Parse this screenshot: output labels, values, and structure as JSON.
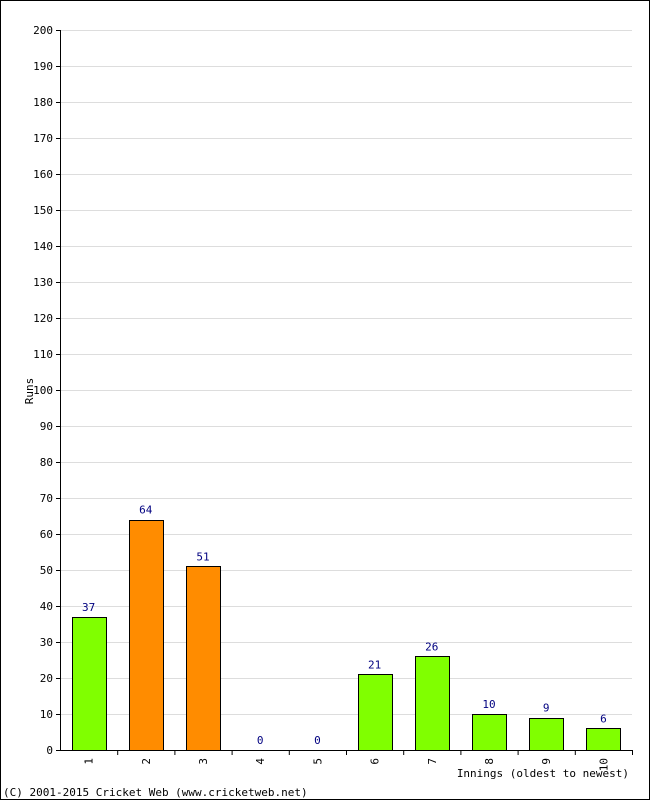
{
  "chart_data": {
    "type": "bar",
    "title": "",
    "ylabel": "Runs",
    "xlabel": "Innings (oldest to newest)",
    "ylim": [
      0,
      200
    ],
    "yticks": [
      0,
      10,
      20,
      30,
      40,
      50,
      60,
      70,
      80,
      90,
      100,
      110,
      120,
      130,
      140,
      150,
      160,
      170,
      180,
      190,
      200
    ],
    "categories": [
      "1",
      "2",
      "3",
      "4",
      "5",
      "6",
      "7",
      "8",
      "9",
      "10"
    ],
    "values": [
      37,
      64,
      51,
      0,
      0,
      21,
      26,
      10,
      9,
      6
    ],
    "bar_colors": [
      "#80ff00",
      "#ff8c00",
      "#ff8c00",
      "#80ff00",
      "#80ff00",
      "#80ff00",
      "#80ff00",
      "#80ff00",
      "#80ff00",
      "#80ff00"
    ],
    "grid": true,
    "label_color": "#000080",
    "grid_color": "#dddddd"
  },
  "footer": {
    "copyright": "(C) 2001-2015 Cricket Web (www.cricketweb.net)"
  }
}
